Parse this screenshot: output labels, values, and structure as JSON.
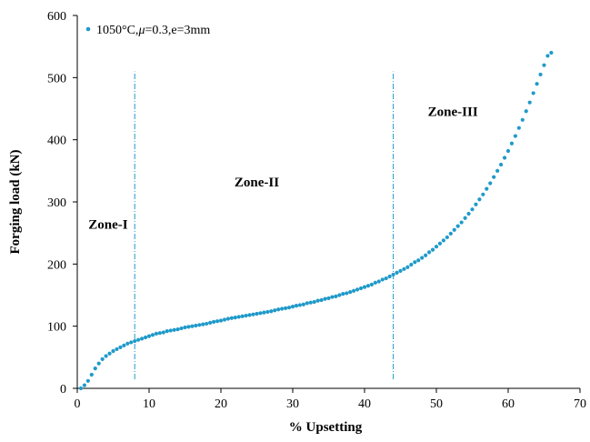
{
  "chart_data": {
    "type": "scatter",
    "xlabel": "% Upsetting",
    "ylabel": "Forging load (kN)",
    "xlim": [
      0,
      70
    ],
    "ylim": [
      0,
      600
    ],
    "x_ticks": [
      "0",
      "10",
      "20",
      "30",
      "40",
      "50",
      "60",
      "70"
    ],
    "y_ticks": [
      "0",
      "100",
      "200",
      "300",
      "400",
      "500",
      "600"
    ],
    "grid": false,
    "legend_position": "top-left",
    "color": "#1f9ac9",
    "series": [
      {
        "name": "1050°C,",
        "name_mu": "μ",
        "name_rest": "=0.3,e=3mm",
        "points": [
          [
            0.5,
            0
          ],
          [
            1,
            5
          ],
          [
            1.5,
            12
          ],
          [
            2,
            22
          ],
          [
            2.5,
            32
          ],
          [
            3,
            40
          ],
          [
            3.5,
            47
          ],
          [
            4,
            52
          ],
          [
            4.5,
            56
          ],
          [
            5,
            60
          ],
          [
            5.5,
            63
          ],
          [
            6,
            66
          ],
          [
            6.5,
            69
          ],
          [
            7,
            72
          ],
          [
            7.5,
            74
          ],
          [
            8,
            76
          ],
          [
            8.5,
            78
          ],
          [
            9,
            80
          ],
          [
            9.5,
            82
          ],
          [
            10,
            84
          ],
          [
            10.5,
            86
          ],
          [
            11,
            88
          ],
          [
            11.5,
            89
          ],
          [
            12,
            90
          ],
          [
            12.5,
            92
          ],
          [
            13,
            93
          ],
          [
            13.5,
            94
          ],
          [
            14,
            95
          ],
          [
            14.5,
            96.5
          ],
          [
            15,
            98
          ],
          [
            15.5,
            99
          ],
          [
            16,
            100
          ],
          [
            16.5,
            101
          ],
          [
            17,
            102
          ],
          [
            17.5,
            103
          ],
          [
            18,
            104
          ],
          [
            18.5,
            105.5
          ],
          [
            19,
            107
          ],
          [
            19.5,
            108
          ],
          [
            20,
            109
          ],
          [
            20.5,
            110.5
          ],
          [
            21,
            112
          ],
          [
            21.5,
            113
          ],
          [
            22,
            114
          ],
          [
            22.5,
            115
          ],
          [
            23,
            116
          ],
          [
            23.5,
            117
          ],
          [
            24,
            118
          ],
          [
            24.5,
            119
          ],
          [
            25,
            120
          ],
          [
            25.5,
            121
          ],
          [
            26,
            122
          ],
          [
            26.5,
            123
          ],
          [
            27,
            124
          ],
          [
            27.5,
            125.5
          ],
          [
            28,
            127
          ],
          [
            28.5,
            128
          ],
          [
            29,
            129
          ],
          [
            29.5,
            130
          ],
          [
            30,
            131.5
          ],
          [
            30.5,
            133
          ],
          [
            31,
            134
          ],
          [
            31.5,
            135
          ],
          [
            32,
            137
          ],
          [
            32.5,
            138
          ],
          [
            33,
            139
          ],
          [
            33.5,
            141
          ],
          [
            34,
            142
          ],
          [
            34.5,
            144
          ],
          [
            35,
            145
          ],
          [
            35.5,
            147
          ],
          [
            36,
            148
          ],
          [
            36.5,
            150
          ],
          [
            37,
            152
          ],
          [
            37.5,
            153
          ],
          [
            38,
            155
          ],
          [
            38.5,
            157
          ],
          [
            39,
            159
          ],
          [
            39.5,
            161
          ],
          [
            40,
            163
          ],
          [
            40.5,
            165
          ],
          [
            41,
            167
          ],
          [
            41.5,
            170
          ],
          [
            42,
            172
          ],
          [
            42.5,
            175
          ],
          [
            43,
            177
          ],
          [
            43.5,
            180
          ],
          [
            44,
            183
          ],
          [
            44.5,
            186
          ],
          [
            45,
            189
          ],
          [
            45.5,
            192
          ],
          [
            46,
            195
          ],
          [
            46.5,
            199
          ],
          [
            47,
            203
          ],
          [
            47.5,
            206
          ],
          [
            48,
            210
          ],
          [
            48.5,
            214
          ],
          [
            49,
            219
          ],
          [
            49.5,
            223
          ],
          [
            50,
            228
          ],
          [
            50.5,
            233
          ],
          [
            51,
            238
          ],
          [
            51.5,
            243
          ],
          [
            52,
            249
          ],
          [
            52.5,
            255
          ],
          [
            53,
            261
          ],
          [
            53.5,
            267
          ],
          [
            54,
            274
          ],
          [
            54.5,
            281
          ],
          [
            55,
            288
          ],
          [
            55.5,
            296
          ],
          [
            56,
            304
          ],
          [
            56.5,
            312
          ],
          [
            57,
            321
          ],
          [
            57.5,
            330
          ],
          [
            58,
            340
          ],
          [
            58.5,
            350
          ],
          [
            59,
            360
          ],
          [
            59.5,
            371
          ],
          [
            60,
            382
          ],
          [
            60.5,
            394
          ],
          [
            61,
            406
          ],
          [
            61.5,
            419
          ],
          [
            62,
            432
          ],
          [
            62.5,
            446
          ],
          [
            63,
            460
          ],
          [
            63.5,
            475
          ],
          [
            64,
            490
          ],
          [
            64.5,
            505
          ],
          [
            65,
            520
          ],
          [
            65.5,
            535
          ],
          [
            66,
            540
          ]
        ]
      }
    ],
    "vlines": [
      8,
      44
    ],
    "annotations": [
      {
        "text": "Zone-I",
        "x": 4.3,
        "y": 257
      },
      {
        "text": "Zone-II",
        "x": 25,
        "y": 325
      },
      {
        "text": "Zone-III",
        "x": 52.3,
        "y": 438
      }
    ]
  }
}
